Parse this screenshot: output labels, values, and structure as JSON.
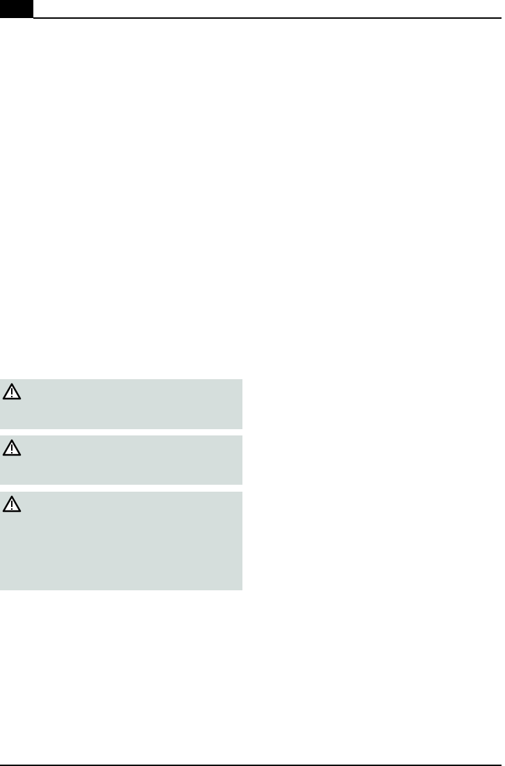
{
  "header": {
    "tab_color": "#000000"
  },
  "notes": [
    {
      "icon": "warning-triangle-icon"
    },
    {
      "icon": "warning-triangle-icon"
    },
    {
      "icon": "warning-triangle-icon"
    }
  ],
  "colors": {
    "note_background": "#d5dedc",
    "rule": "#000000"
  }
}
